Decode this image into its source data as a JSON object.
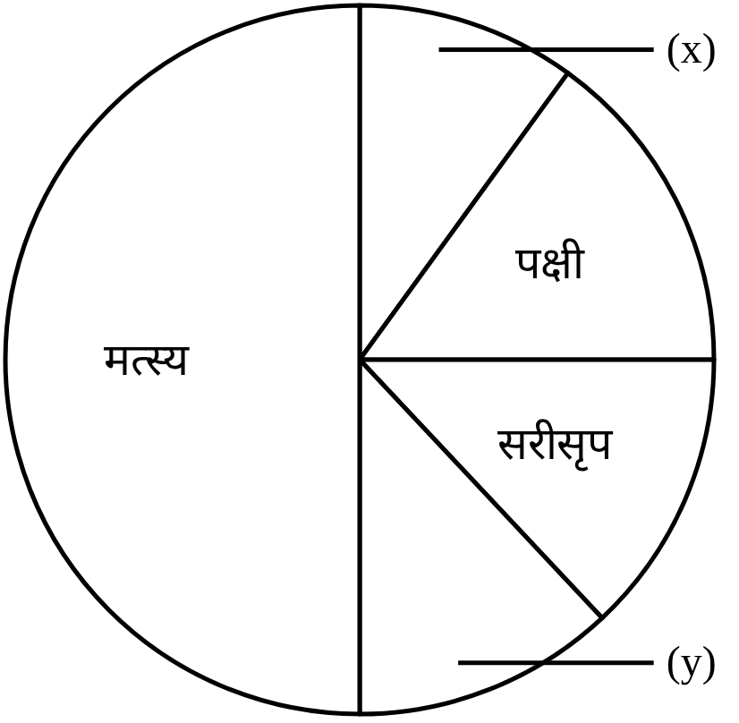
{
  "chart_data": {
    "type": "pie",
    "categories": [
      "(x)",
      "पक्षी",
      "सरीसृप",
      "(y)",
      "मत्स्य"
    ],
    "values": [
      10,
      15,
      13,
      12,
      50
    ],
    "colors": [
      "#ffffff",
      "#ffffff",
      "#ffffff",
      "#ffffff",
      "#ffffff"
    ]
  }
}
